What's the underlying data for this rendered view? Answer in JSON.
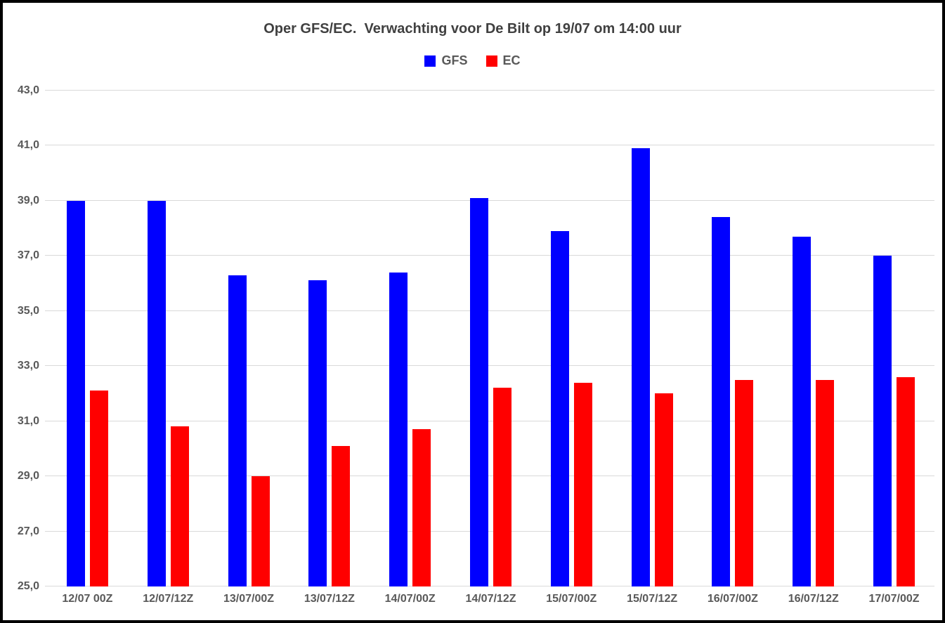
{
  "title": "Oper GFS/EC.  Verwachting voor De Bilt op 19/07 om 14:00 uur",
  "colors": {
    "gfs": "#0000ff",
    "ec": "#ff0000",
    "gridline": "#d9d9d9",
    "axis_text": "#595959",
    "title_text": "#404040",
    "border": "#000000",
    "background": "#ffffff"
  },
  "chart_data": {
    "type": "bar",
    "title": "Oper GFS/EC.  Verwachting voor De Bilt op 19/07 om 14:00 uur",
    "xlabel": "",
    "ylabel": "",
    "categories": [
      "12/07 00Z",
      "12/07/12Z",
      "13/07/00Z",
      "13/07/12Z",
      "14/07/00Z",
      "14/07/12Z",
      "15/07/00Z",
      "15/07/12Z",
      "16/07/00Z",
      "16/07/12Z",
      "17/07/00Z"
    ],
    "series": [
      {
        "name": "GFS",
        "color": "#0000ff",
        "values": [
          39.0,
          39.0,
          36.3,
          36.1,
          36.4,
          39.1,
          37.9,
          40.9,
          38.4,
          37.7,
          37.0
        ]
      },
      {
        "name": "EC",
        "color": "#ff0000",
        "values": [
          32.1,
          30.8,
          29.0,
          30.1,
          30.7,
          32.2,
          32.4,
          32.0,
          32.5,
          32.5,
          32.6
        ]
      }
    ],
    "y_axis": {
      "min": 25.0,
      "max": 43.0,
      "step": 2.0,
      "ticks": [
        25.0,
        27.0,
        29.0,
        31.0,
        33.0,
        35.0,
        37.0,
        39.0,
        41.0,
        43.0
      ],
      "tick_labels": [
        "25,0",
        "27,0",
        "29,0",
        "31,0",
        "33,0",
        "35,0",
        "37,0",
        "39,0",
        "41,0",
        "43,0"
      ],
      "decimal_separator": ","
    },
    "ylim": [
      25.0,
      43.0
    ],
    "grid": true,
    "legend_position": "top"
  }
}
